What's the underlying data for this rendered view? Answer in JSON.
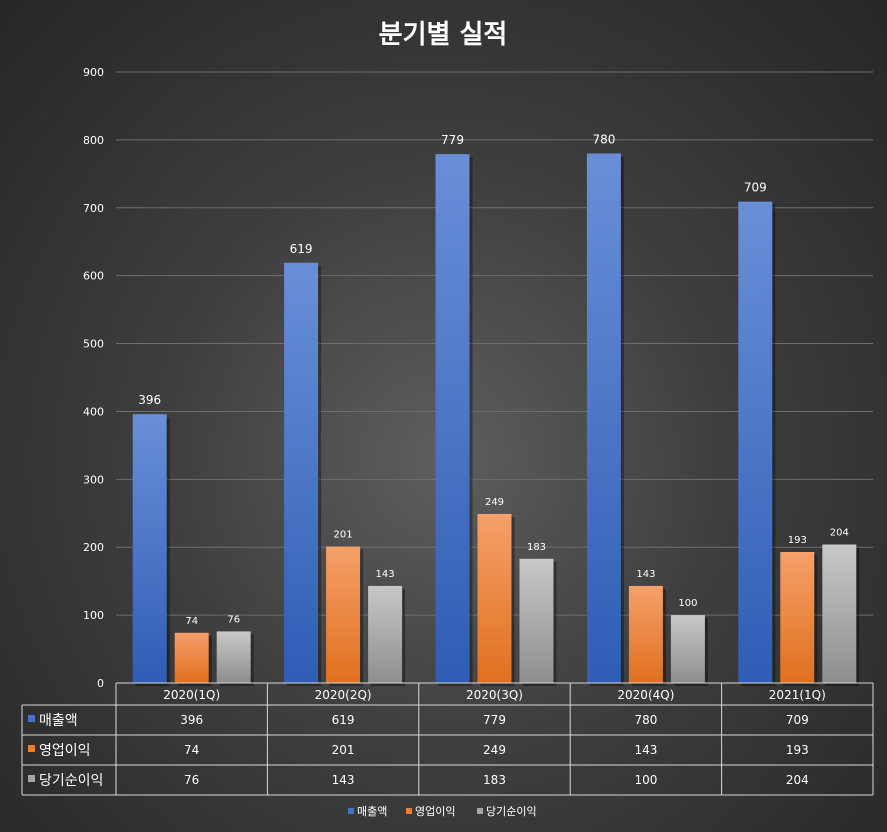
{
  "chart_data": {
    "type": "bar",
    "title": "분기별 실적",
    "categories": [
      "2020(1Q)",
      "2020(2Q)",
      "2020(3Q)",
      "2020(4Q)",
      "2021(1Q)"
    ],
    "series": [
      {
        "name": "매출액",
        "color": "#4472c4",
        "values": [
          396,
          619,
          779,
          780,
          709
        ]
      },
      {
        "name": "영업이익",
        "color": "#ed7d31",
        "values": [
          74,
          201,
          249,
          143,
          193
        ]
      },
      {
        "name": "당기순이익",
        "color": "#a5a5a5",
        "values": [
          76,
          143,
          183,
          100,
          204
        ]
      }
    ],
    "ylim": [
      0,
      900
    ],
    "yticks": [
      0,
      100,
      200,
      300,
      400,
      500,
      600,
      700,
      800,
      900
    ],
    "grid": true,
    "data_table": true,
    "legend": "bottom"
  }
}
